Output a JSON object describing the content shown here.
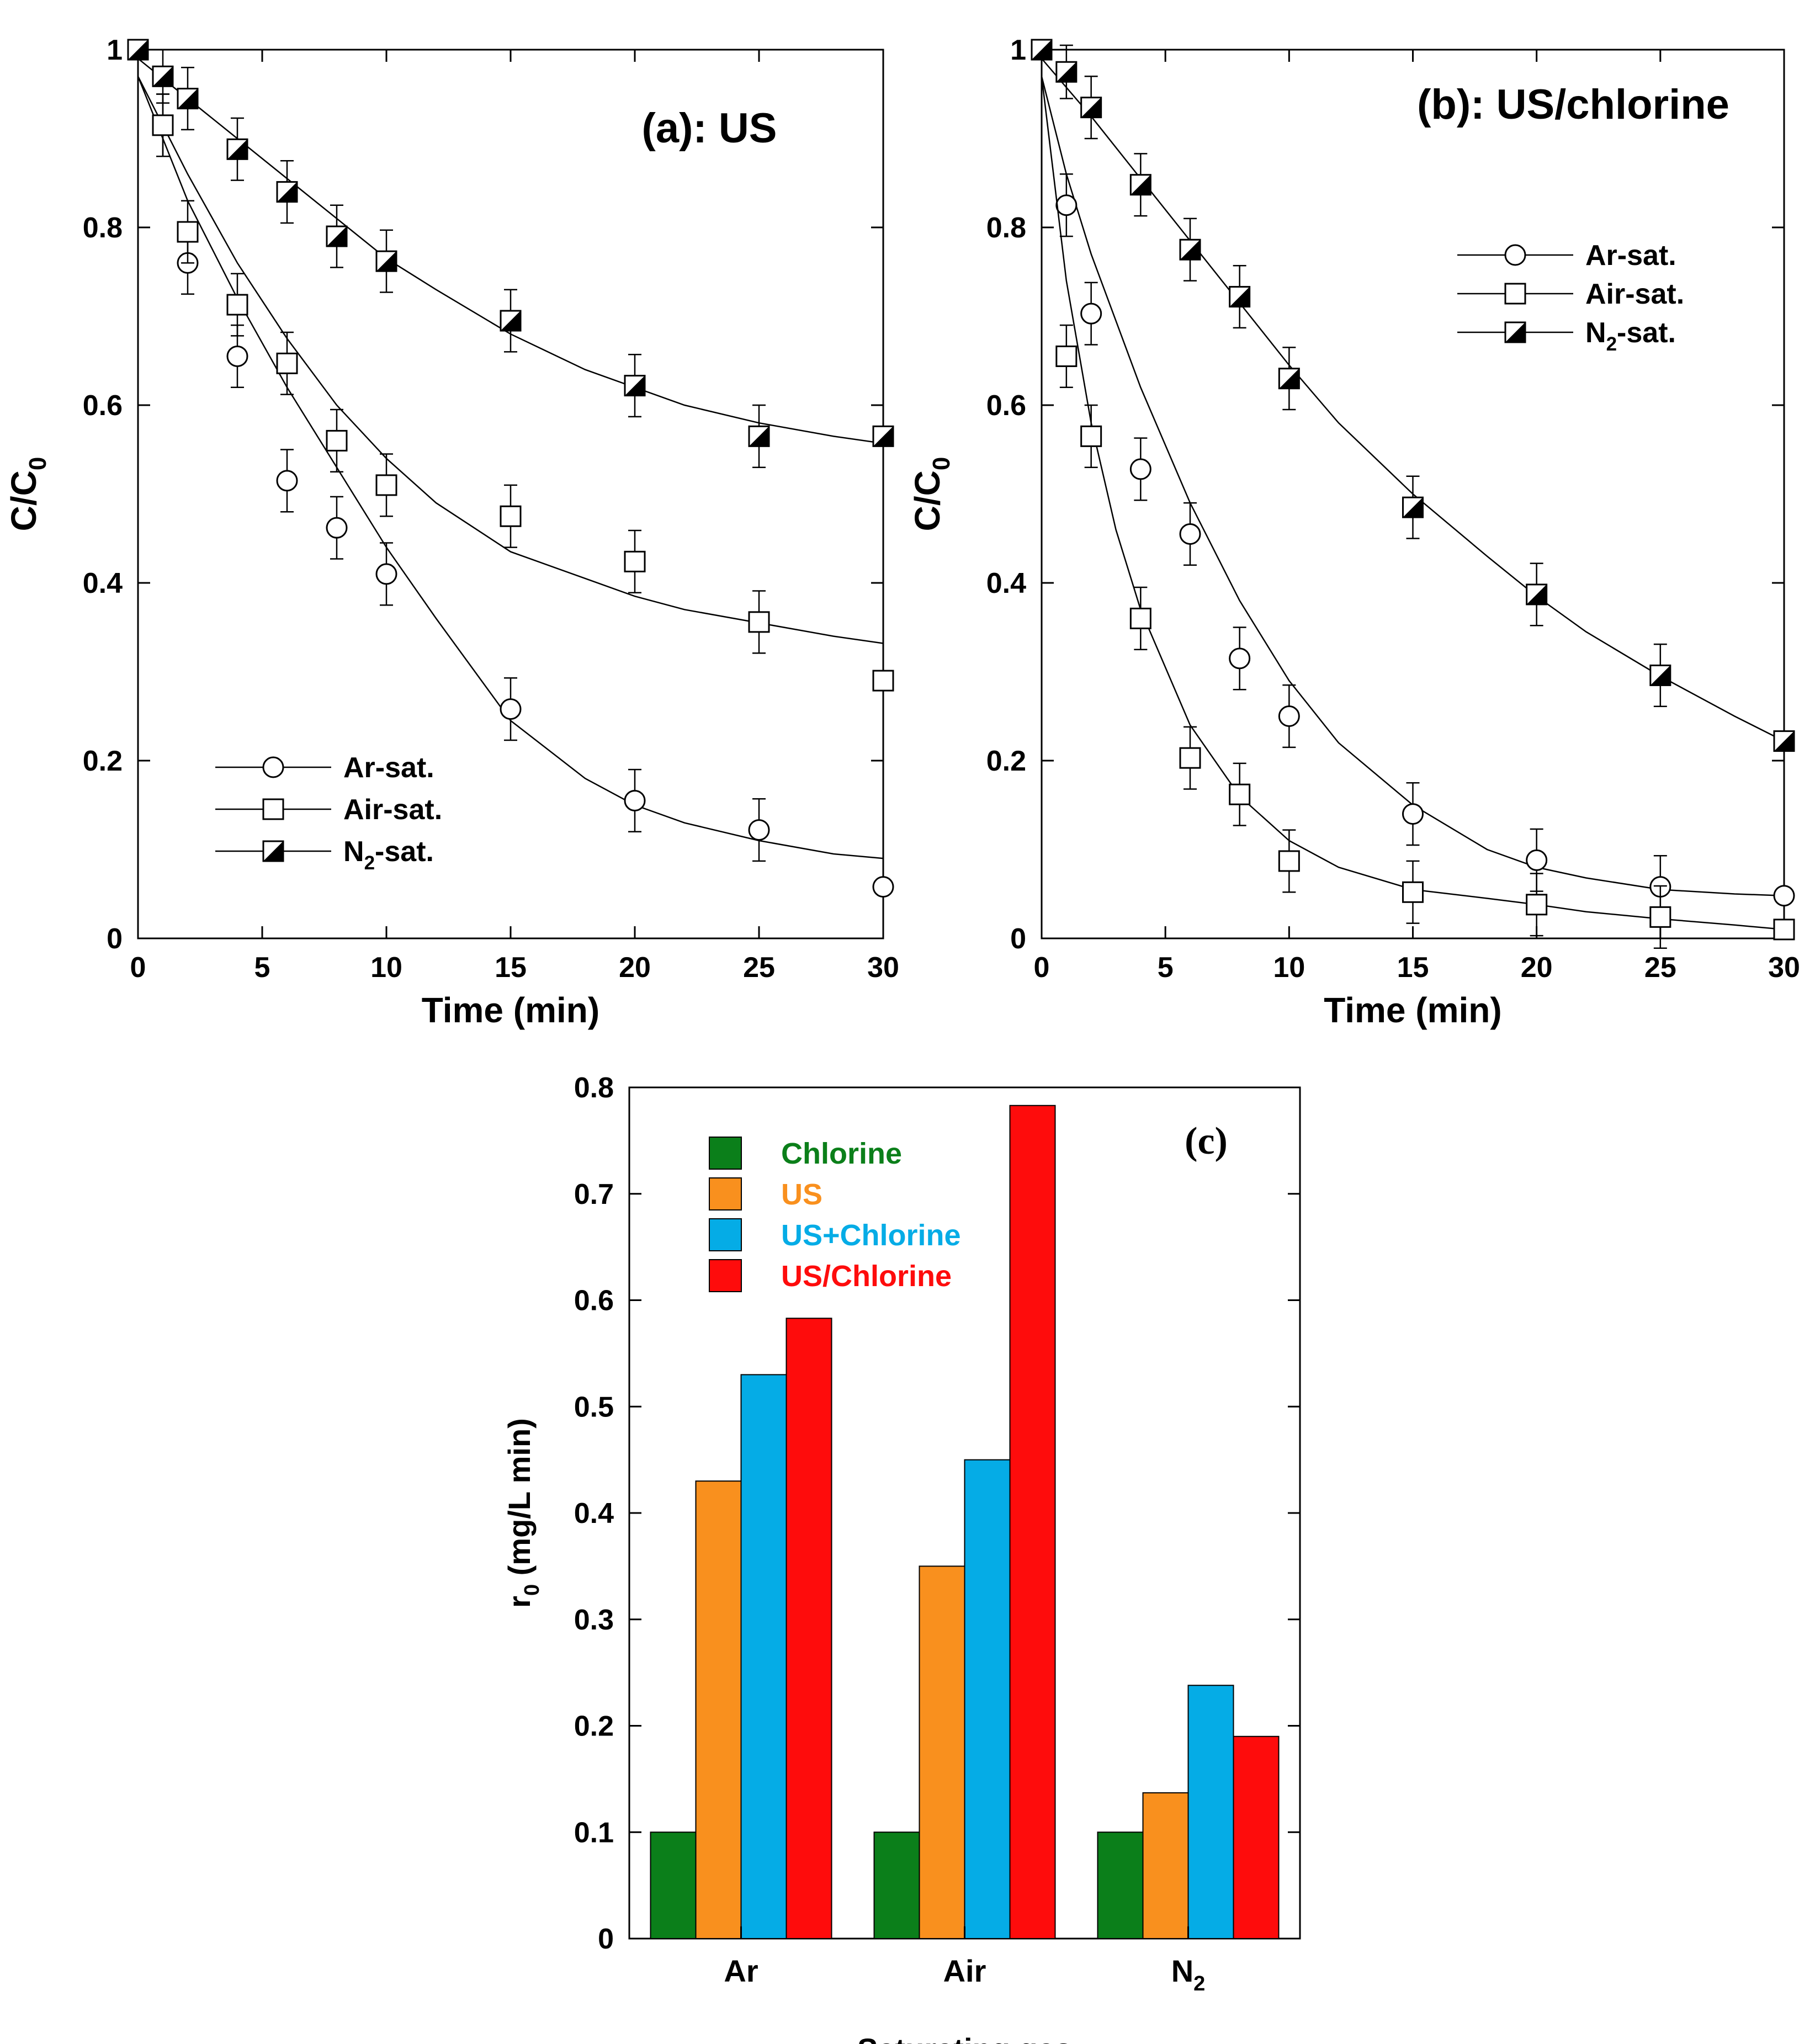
{
  "chart_data": [
    {
      "id": "a",
      "type": "scatter",
      "title": "(a): US",
      "xlabel": "Time (min)",
      "ylabel": "C/C",
      "ylabel_sub": "0",
      "xlim": [
        0,
        30
      ],
      "ylim": [
        0,
        1
      ],
      "xticks": [
        0,
        5,
        10,
        15,
        20,
        25,
        30
      ],
      "yticks": [
        0,
        0.2,
        0.4,
        0.6,
        0.8,
        1
      ],
      "ytick_labels": [
        "0",
        "0.2",
        "0.4",
        "0.6",
        "0.8",
        "1"
      ],
      "legend_position": "bottom-left",
      "series": [
        {
          "name": "Ar-sat.",
          "label_main": "Ar-sat.",
          "label_sub": "",
          "label_rest": "",
          "marker": "circle",
          "x": [
            1,
            2,
            4,
            6,
            8,
            10,
            15,
            20,
            25,
            30
          ],
          "y": [
            0.915,
            0.76,
            0.655,
            0.515,
            0.462,
            0.41,
            0.258,
            0.155,
            0.122,
            0.058
          ],
          "err": [
            0.035,
            0.035,
            0.035,
            0.035,
            0.035,
            0.035,
            0.035,
            0.035,
            0.035,
            0
          ],
          "fit_x": [
            0,
            2,
            4,
            6,
            8,
            10,
            12,
            15,
            18,
            20,
            22,
            25,
            28,
            30
          ],
          "fit_y": [
            0.97,
            0.83,
            0.72,
            0.62,
            0.53,
            0.44,
            0.36,
            0.245,
            0.18,
            0.15,
            0.13,
            0.11,
            0.095,
            0.09
          ]
        },
        {
          "name": "Air-sat.",
          "label_main": "Air-sat.",
          "label_sub": "",
          "label_rest": "",
          "marker": "square",
          "x": [
            1,
            2,
            4,
            6,
            8,
            10,
            15,
            20,
            25,
            30
          ],
          "y": [
            0.915,
            0.795,
            0.713,
            0.647,
            0.56,
            0.51,
            0.475,
            0.424,
            0.356,
            0.29
          ],
          "err": [
            0.035,
            0.035,
            0.035,
            0.035,
            0.035,
            0.035,
            0.035,
            0.035,
            0.035,
            0
          ],
          "fit_x": [
            0,
            2,
            4,
            6,
            8,
            10,
            12,
            15,
            18,
            20,
            22,
            25,
            28,
            30
          ],
          "fit_y": [
            0.97,
            0.86,
            0.76,
            0.675,
            0.6,
            0.54,
            0.49,
            0.435,
            0.405,
            0.385,
            0.37,
            0.355,
            0.34,
            0.332
          ]
        },
        {
          "name": "N2-sat.",
          "label_main": "N",
          "label_sub": "2",
          "label_rest": "-sat.",
          "marker": "half-square",
          "x": [
            0,
            1,
            2,
            4,
            6,
            8,
            10,
            15,
            20,
            25,
            30
          ],
          "y": [
            1,
            0.97,
            0.945,
            0.888,
            0.84,
            0.79,
            0.762,
            0.695,
            0.622,
            0.565,
            0.565
          ],
          "err": [
            0,
            0.03,
            0.035,
            0.035,
            0.035,
            0.035,
            0.035,
            0.035,
            0.035,
            0.035,
            0
          ],
          "fit_x": [
            0,
            2,
            4,
            6,
            8,
            10,
            12,
            15,
            18,
            20,
            22,
            25,
            28,
            30
          ],
          "fit_y": [
            0.99,
            0.945,
            0.9,
            0.855,
            0.81,
            0.765,
            0.73,
            0.68,
            0.64,
            0.62,
            0.6,
            0.58,
            0.565,
            0.557
          ]
        }
      ]
    },
    {
      "id": "b",
      "type": "scatter",
      "title": "(b): US/chlorine",
      "xlabel": "Time (min)",
      "ylabel": "C/C",
      "ylabel_sub": "0",
      "xlim": [
        0,
        30
      ],
      "ylim": [
        0,
        1
      ],
      "xticks": [
        0,
        5,
        10,
        15,
        20,
        25,
        30
      ],
      "yticks": [
        0,
        0.2,
        0.4,
        0.6,
        0.8,
        1
      ],
      "ytick_labels": [
        "0",
        "0.2",
        "0.4",
        "0.6",
        "0.8",
        "1"
      ],
      "legend_position": "top-right",
      "series": [
        {
          "name": "Ar-sat.",
          "label_main": "Ar-sat.",
          "label_sub": "",
          "label_rest": "",
          "marker": "circle",
          "x": [
            1,
            2,
            4,
            6,
            8,
            10,
            15,
            20,
            25,
            30
          ],
          "y": [
            0.825,
            0.703,
            0.528,
            0.455,
            0.315,
            0.25,
            0.14,
            0.088,
            0.058,
            0.048
          ],
          "err": [
            0.035,
            0.035,
            0.035,
            0.035,
            0.035,
            0.035,
            0.035,
            0.035,
            0.035,
            0
          ],
          "fit_x": [
            0,
            1,
            2,
            4,
            6,
            8,
            10,
            12,
            15,
            18,
            20,
            22,
            25,
            28,
            30
          ],
          "fit_y": [
            0.97,
            0.86,
            0.77,
            0.62,
            0.49,
            0.38,
            0.29,
            0.22,
            0.15,
            0.1,
            0.08,
            0.068,
            0.055,
            0.05,
            0.048
          ]
        },
        {
          "name": "Air-sat.",
          "label_main": "Air-sat.",
          "label_sub": "",
          "label_rest": "",
          "marker": "square",
          "x": [
            1,
            2,
            4,
            6,
            8,
            10,
            15,
            20,
            25,
            30
          ],
          "y": [
            0.655,
            0.565,
            0.36,
            0.203,
            0.162,
            0.087,
            0.052,
            0.038,
            0.024,
            0.01
          ],
          "err": [
            0.035,
            0.035,
            0.035,
            0.035,
            0.035,
            0.035,
            0.035,
            0.035,
            0.035,
            0
          ],
          "fit_x": [
            0,
            1,
            2,
            3,
            4,
            6,
            8,
            10,
            12,
            15,
            18,
            20,
            22,
            25,
            28,
            30
          ],
          "fit_y": [
            0.97,
            0.74,
            0.58,
            0.46,
            0.37,
            0.24,
            0.16,
            0.11,
            0.08,
            0.055,
            0.045,
            0.038,
            0.03,
            0.022,
            0.015,
            0.01
          ]
        },
        {
          "name": "N2-sat.",
          "label_main": "N",
          "label_sub": "2",
          "label_rest": "-sat.",
          "marker": "half-square",
          "x": [
            0,
            1,
            2,
            4,
            6,
            8,
            10,
            15,
            20,
            25,
            30
          ],
          "y": [
            1,
            0.975,
            0.935,
            0.848,
            0.775,
            0.722,
            0.63,
            0.485,
            0.387,
            0.296,
            0.222
          ],
          "err": [
            0,
            0.03,
            0.035,
            0.035,
            0.035,
            0.035,
            0.035,
            0.035,
            0.035,
            0.035,
            0
          ],
          "fit_x": [
            0,
            2,
            4,
            6,
            8,
            10,
            12,
            15,
            18,
            20,
            22,
            25,
            28,
            30
          ],
          "fit_y": [
            0.99,
            0.925,
            0.855,
            0.785,
            0.715,
            0.645,
            0.58,
            0.5,
            0.43,
            0.385,
            0.345,
            0.295,
            0.25,
            0.222
          ]
        }
      ]
    },
    {
      "id": "c",
      "type": "bar",
      "title": "(c)",
      "xlabel": "Saturating gas",
      "ylabel": "r",
      "ylabel_sub": "0",
      "ylabel_rest": " (mg/L min)",
      "ylim": [
        0,
        0.8
      ],
      "yticks": [
        0,
        0.1,
        0.2,
        0.3,
        0.4,
        0.5,
        0.6,
        0.7,
        0.8
      ],
      "ytick_labels": [
        "0",
        "0.1",
        "0.2",
        "0.3",
        "0.4",
        "0.5",
        "0.6",
        "0.7",
        "0.8"
      ],
      "categories": [
        {
          "main": "Ar",
          "sub": ""
        },
        {
          "main": "Air",
          "sub": ""
        },
        {
          "main": "N",
          "sub": "2"
        }
      ],
      "legend_position": "top-left",
      "series": [
        {
          "name": "Chlorine",
          "color": "#0b7f1a",
          "values": [
            0.1,
            0.1,
            0.1
          ]
        },
        {
          "name": "US",
          "color": "#f9901e",
          "values": [
            0.43,
            0.35,
            0.137
          ]
        },
        {
          "name": "US+Chlorine",
          "color": "#05ace6",
          "values": [
            0.53,
            0.45,
            0.238
          ]
        },
        {
          "name": "US/Chlorine",
          "color": "#fe0c0c",
          "values": [
            0.583,
            0.783,
            0.19
          ]
        }
      ]
    }
  ]
}
